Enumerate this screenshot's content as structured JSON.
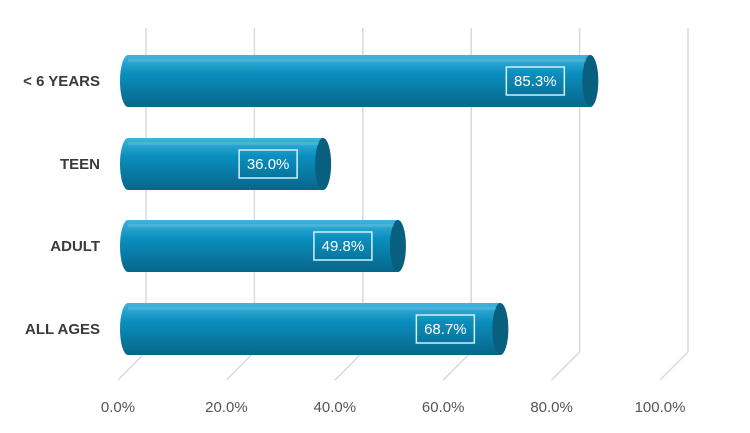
{
  "chart_data": {
    "type": "bar",
    "orientation": "horizontal",
    "style": "3d-cylinder",
    "categories": [
      "< 6 YEARS",
      "TEEN",
      "ADULT",
      "ALL AGES"
    ],
    "values": [
      85.3,
      36.0,
      49.8,
      68.7
    ],
    "data_labels": [
      "85.3%",
      "36.0%",
      "49.8%",
      "68.7%"
    ],
    "x_ticks": [
      "0.0%",
      "20.0%",
      "40.0%",
      "60.0%",
      "80.0%",
      "100.0%"
    ],
    "xlim": [
      0,
      100
    ],
    "title": "",
    "xlabel": "",
    "ylabel": "",
    "grid": true,
    "legend": "none",
    "colors": {
      "bar": "#0a8fbe",
      "bar_highlight": "#3fb4dd",
      "bar_shadow": "#06668a",
      "bar_end": "#085f7e",
      "label_border": "#d6eef8",
      "grid": "#d9d9d9"
    }
  }
}
